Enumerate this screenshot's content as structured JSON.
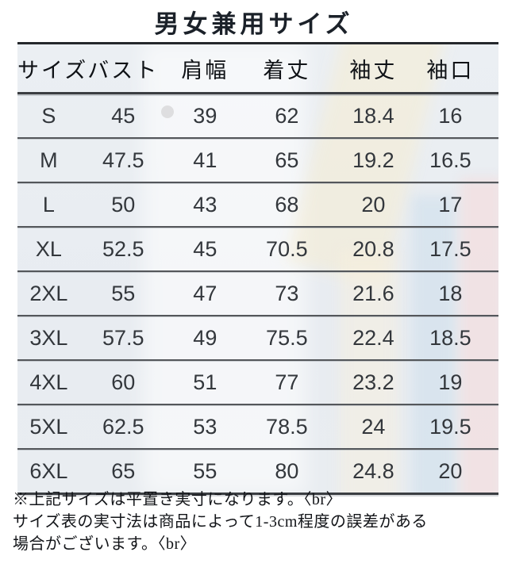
{
  "chart_data": {
    "type": "table",
    "title": "男女兼用サイズ",
    "columns": [
      "サイズ",
      "バスト",
      "肩幅",
      "着丈",
      "袖丈",
      "袖口"
    ],
    "rows": [
      [
        "S",
        "45",
        "39",
        "62",
        "18.4",
        "16"
      ],
      [
        "M",
        "47.5",
        "41",
        "65",
        "19.2",
        "16.5"
      ],
      [
        "L",
        "50",
        "43",
        "68",
        "20",
        "17"
      ],
      [
        "XL",
        "52.5",
        "45",
        "70.5",
        "20.8",
        "17.5"
      ],
      [
        "2XL",
        "55",
        "47",
        "73",
        "21.6",
        "18"
      ],
      [
        "3XL",
        "57.5",
        "49",
        "75.5",
        "22.4",
        "18.5"
      ],
      [
        "4XL",
        "60",
        "51",
        "77",
        "23.2",
        "19"
      ],
      [
        "5XL",
        "62.5",
        "53",
        "78.5",
        "24",
        "19.5"
      ],
      [
        "6XL",
        "65",
        "55",
        "80",
        "24.8",
        "20"
      ]
    ]
  },
  "notes": {
    "lines": [
      "※上記サイズは平置き実寸になります。〈br〉",
      "サイズ表の実寸法は商品によって1-3cm程度の誤差がある",
      "場合がございます。〈br〉"
    ]
  },
  "colors": {
    "table_tint": "#e9edf2",
    "line_dark": "#3b3e42",
    "text_dark": "#1b2129",
    "strip_cream": "#f6ecd2",
    "strip_blue": "#d1e0ed",
    "strip_pink": "#f6dbdb"
  }
}
